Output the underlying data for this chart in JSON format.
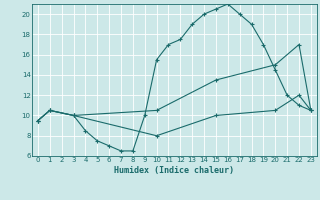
{
  "xlabel": "Humidex (Indice chaleur)",
  "bg_color": "#cce8e8",
  "grid_color": "#ffffff",
  "line_color": "#1a6b6b",
  "xlim": [
    -0.5,
    23.5
  ],
  "ylim": [
    6,
    21
  ],
  "xticks": [
    0,
    1,
    2,
    3,
    4,
    5,
    6,
    7,
    8,
    9,
    10,
    11,
    12,
    13,
    14,
    15,
    16,
    17,
    18,
    19,
    20,
    21,
    22,
    23
  ],
  "yticks": [
    6,
    8,
    10,
    12,
    14,
    16,
    18,
    20
  ],
  "line1_x": [
    0,
    1,
    3,
    4,
    5,
    6,
    7,
    8,
    9,
    10,
    11,
    12,
    13,
    14,
    15,
    16,
    17,
    18,
    19,
    20,
    21,
    22,
    23
  ],
  "line1_y": [
    9.5,
    10.5,
    10.0,
    8.5,
    7.5,
    7.0,
    6.5,
    6.5,
    10.0,
    15.5,
    17.0,
    17.5,
    19.0,
    20.0,
    20.5,
    21.0,
    20.0,
    19.0,
    17.0,
    14.5,
    12.0,
    11.0,
    10.5
  ],
  "line2_x": [
    0,
    1,
    3,
    10,
    15,
    20,
    22,
    23
  ],
  "line2_y": [
    9.5,
    10.5,
    10.0,
    10.5,
    13.5,
    15.0,
    17.0,
    10.5
  ],
  "line3_x": [
    0,
    1,
    3,
    10,
    15,
    20,
    22,
    23
  ],
  "line3_y": [
    9.5,
    10.5,
    10.0,
    8.0,
    10.0,
    10.5,
    12.0,
    10.5
  ]
}
